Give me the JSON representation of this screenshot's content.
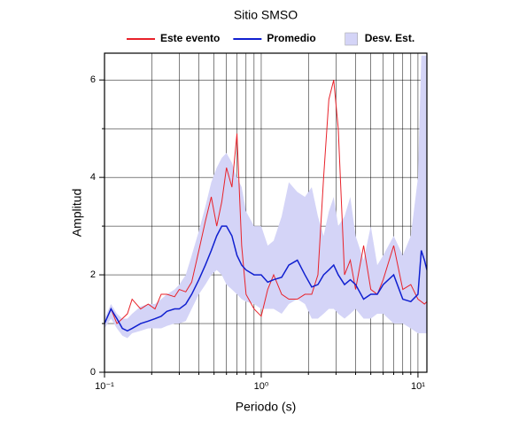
{
  "chart_data": {
    "type": "line",
    "title": "Sitio SMSO",
    "x_label": "Periodo (s)",
    "y_label": "Amplitud",
    "x_scale": "log",
    "grid": true,
    "legend": "top",
    "x": [
      0.1,
      0.11,
      0.12,
      0.13,
      0.14,
      0.15,
      0.17,
      0.19,
      0.21,
      0.23,
      0.25,
      0.28,
      0.3,
      0.33,
      0.36,
      0.4,
      0.44,
      0.48,
      0.52,
      0.56,
      0.6,
      0.65,
      0.7,
      0.75,
      0.8,
      0.9,
      1.0,
      1.1,
      1.2,
      1.35,
      1.5,
      1.7,
      1.9,
      2.1,
      2.3,
      2.5,
      2.7,
      2.9,
      3.1,
      3.4,
      3.7,
      4,
      4.5,
      5,
      5.5,
      6,
      7,
      8,
      9,
      10,
      10.5,
      11,
      11.4
    ],
    "series": [
      {
        "name": "Desv. Est.",
        "style": "band",
        "color": "#d4d4f7",
        "upper": [
          1.1,
          1.4,
          1.2,
          1.1,
          1.1,
          1.2,
          1.35,
          1.4,
          1.4,
          1.5,
          1.6,
          1.7,
          1.8,
          2.0,
          2.4,
          2.9,
          3.4,
          3.9,
          4.2,
          4.4,
          4.5,
          4.3,
          4.0,
          3.8,
          3.3,
          3.0,
          3.0,
          2.6,
          2.7,
          3.2,
          3.9,
          3.7,
          3.6,
          3.8,
          3.2,
          2.8,
          3.3,
          3.6,
          3.0,
          3.2,
          3.6,
          2.8,
          2.3,
          3.0,
          2.2,
          2.4,
          2.8,
          2.4,
          2.8,
          4.0,
          6.5,
          6.5,
          6.5
        ],
        "lower": [
          0.9,
          1.1,
          0.9,
          0.75,
          0.7,
          0.8,
          0.85,
          0.9,
          0.9,
          0.9,
          0.95,
          1.0,
          1.0,
          1.05,
          1.3,
          1.6,
          1.8,
          2.0,
          2.1,
          2.0,
          1.8,
          1.7,
          1.6,
          1.5,
          1.45,
          1.4,
          1.3,
          1.3,
          1.3,
          1.2,
          1.4,
          1.5,
          1.4,
          1.1,
          1.1,
          1.2,
          1.3,
          1.3,
          1.2,
          1.1,
          1.2,
          1.3,
          1.1,
          1.1,
          1.2,
          1.2,
          1.0,
          1.0,
          0.9,
          0.8,
          0.8,
          0.8,
          0.8
        ]
      },
      {
        "name": "Este evento",
        "style": "line",
        "color": "#e8222a",
        "values": [
          1.0,
          1.3,
          1.0,
          1.1,
          1.2,
          1.5,
          1.3,
          1.4,
          1.3,
          1.6,
          1.6,
          1.55,
          1.7,
          1.65,
          1.85,
          2.5,
          3.1,
          3.6,
          3.0,
          3.5,
          4.2,
          3.8,
          4.9,
          2.6,
          1.6,
          1.3,
          1.15,
          1.7,
          2.0,
          1.6,
          1.5,
          1.5,
          1.6,
          1.6,
          2.0,
          4.0,
          5.6,
          6.0,
          5.0,
          2.0,
          2.3,
          1.7,
          2.6,
          1.7,
          1.6,
          1.9,
          2.6,
          1.7,
          1.8,
          1.5,
          1.45,
          1.4,
          1.45
        ]
      },
      {
        "name": "Promedio",
        "style": "line",
        "color": "#1020d0",
        "values": [
          1.0,
          1.3,
          1.1,
          0.9,
          0.85,
          0.9,
          1.0,
          1.05,
          1.1,
          1.15,
          1.25,
          1.3,
          1.3,
          1.4,
          1.6,
          1.9,
          2.2,
          2.5,
          2.8,
          3.0,
          3.0,
          2.8,
          2.4,
          2.2,
          2.1,
          2.0,
          2.0,
          1.85,
          1.9,
          1.95,
          2.2,
          2.3,
          2.0,
          1.75,
          1.8,
          2.0,
          2.1,
          2.2,
          2.0,
          1.8,
          1.9,
          1.8,
          1.5,
          1.6,
          1.6,
          1.8,
          2.0,
          1.5,
          1.45,
          1.6,
          2.5,
          2.3,
          2.1
        ]
      }
    ],
    "xlim": [
      0.1,
      11.4
    ],
    "ylim": [
      0,
      6.55
    ],
    "xticks": [
      {
        "value": 0.1,
        "label": "10⁻¹"
      },
      {
        "value": 1,
        "label": "10⁰"
      },
      {
        "value": 10,
        "label": "10¹"
      }
    ],
    "xminor_ticks": [
      0.2,
      0.3,
      0.4,
      0.5,
      0.6,
      0.7,
      0.8,
      0.9,
      2,
      3,
      4,
      5,
      6,
      7,
      8,
      9
    ],
    "yticks": [
      0,
      2,
      4,
      6
    ],
    "yminor_ticks": [
      1,
      3,
      5
    ]
  }
}
